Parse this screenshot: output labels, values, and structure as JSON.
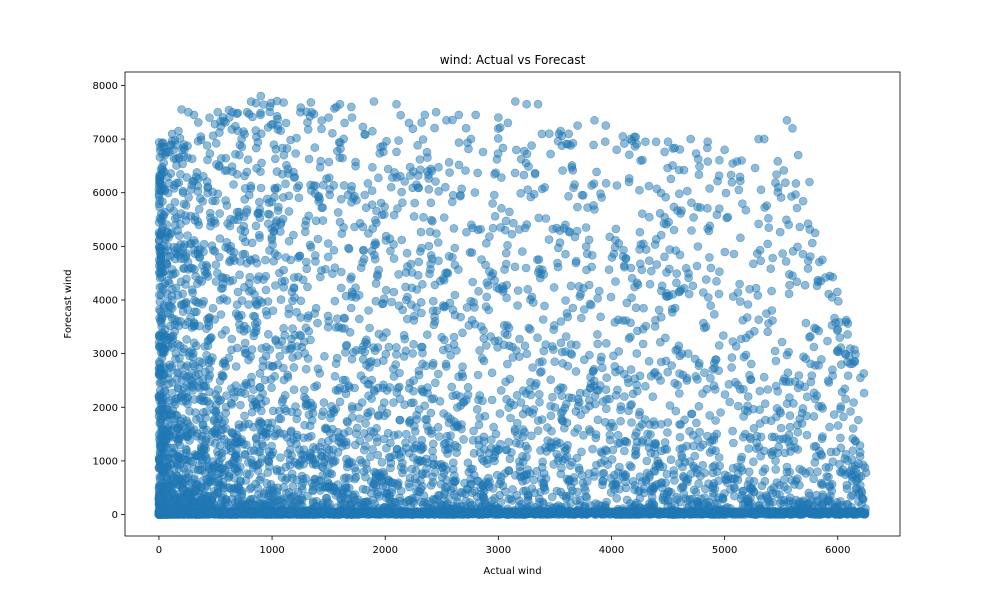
{
  "chart_data": {
    "type": "scatter",
    "title": "wind: Actual vs Forecast",
    "xlabel": "Actual wind",
    "ylabel": "Forecast wind",
    "xlim": [
      -300,
      6550
    ],
    "ylim": [
      -400,
      8250
    ],
    "xticks": [
      0,
      1000,
      2000,
      3000,
      4000,
      5000,
      6000
    ],
    "yticks": [
      0,
      1000,
      2000,
      3000,
      4000,
      5000,
      6000,
      7000,
      8000
    ],
    "grid": false,
    "legend": "none",
    "marker_color": "#1f77b4",
    "marker_alpha": 0.5,
    "approx_point_count": 7000,
    "distribution": "Actual spans 0 to 6250; forecast spans 0 to about 7800. A dense band of points sits at forecast near 0 across all actual values; density is highest at low actual values and thins out toward high actual and high forecast values; the upper edge of forecast values declines from about 7800 near actual 1000 to about 2900 near actual 6200.",
    "points": [
      [
        20,
        4750
      ],
      [
        60,
        6750
      ],
      [
        130,
        6800
      ],
      [
        200,
        7550
      ],
      [
        260,
        7500
      ],
      [
        310,
        7450
      ],
      [
        520,
        7500
      ],
      [
        650,
        7500
      ],
      [
        780,
        7500
      ],
      [
        900,
        7800
      ],
      [
        1050,
        7250
      ],
      [
        1250,
        7500
      ],
      [
        1350,
        7500
      ],
      [
        1500,
        7400
      ],
      [
        1600,
        7650
      ],
      [
        1700,
        7600
      ],
      [
        1900,
        7700
      ],
      [
        2100,
        7650
      ],
      [
        2350,
        7450
      ],
      [
        2450,
        7500
      ],
      [
        2650,
        7450
      ],
      [
        2800,
        7450
      ],
      [
        3000,
        7400
      ],
      [
        3150,
        7700
      ],
      [
        3250,
        7650
      ],
      [
        3350,
        7650
      ],
      [
        3450,
        7100
      ],
      [
        3550,
        7150
      ],
      [
        3700,
        7250
      ],
      [
        3850,
        7350
      ],
      [
        3950,
        7250
      ],
      [
        4100,
        7050
      ],
      [
        4300,
        6950
      ],
      [
        4500,
        6950
      ],
      [
        4700,
        7000
      ],
      [
        4850,
        6950
      ],
      [
        5000,
        6800
      ],
      [
        5150,
        6600
      ],
      [
        5300,
        7000
      ],
      [
        5350,
        7000
      ],
      [
        5550,
        7350
      ],
      [
        5600,
        7200
      ],
      [
        5650,
        6700
      ],
      [
        5750,
        6200
      ],
      [
        5800,
        5250
      ],
      [
        5850,
        4350
      ],
      [
        5950,
        4050
      ],
      [
        6000,
        3450
      ],
      [
        6100,
        2950
      ],
      [
        6150,
        2850
      ],
      [
        6200,
        2550
      ],
      [
        6230,
        0
      ]
    ]
  }
}
